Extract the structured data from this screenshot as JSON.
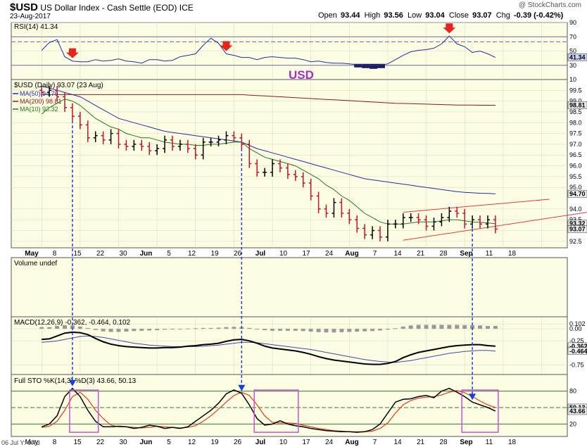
{
  "header": {
    "symbol": "$USD",
    "name": "US Dollar Index - Cash Settle (EOD)",
    "exchange": "ICE",
    "date": "23-Aug-2017",
    "watermark": "@ StockCharts.com",
    "open_label": "Open",
    "open": "93.44",
    "high_label": "High",
    "high": "93.56",
    "low_label": "Low",
    "low": "93.04",
    "close_label": "Close",
    "close": "93.07",
    "chg_label": "Chg",
    "chg": "-0.39 (-0.42%)"
  },
  "annotation_usd": "USD",
  "colors": {
    "panel_bg": "#fdfde3",
    "bear": "#c8102e",
    "bull": "#000000",
    "ma50": "#1f2ea8",
    "ma200": "#8b1a1a",
    "ma10": "#1f7a1f",
    "channel": "#e03c3c",
    "arrow_red": "#e8231c",
    "arrow_blue": "#1a3fd6",
    "box_magenta": "#d050d0",
    "macd_line": "#000000",
    "signal_line": "#3d4ab3",
    "histogram": "#999999",
    "sto_k": "#000000",
    "sto_d": "#e03c1c"
  },
  "chart_data": [
    {
      "type": "line",
      "panel": "rsi",
      "label": "RSI(14) 41.34",
      "ylim": [
        10,
        90
      ],
      "tick_labels": [
        "90",
        "70",
        "50",
        "30",
        "10"
      ],
      "level_labels": [
        "41.34"
      ],
      "series": [
        {
          "name": "RSI(14)",
          "values": [
            51,
            62,
            66,
            42,
            36,
            35,
            35,
            38,
            36,
            37,
            39,
            36,
            35,
            33,
            38,
            38,
            36,
            37,
            42,
            44,
            46,
            58,
            68,
            61,
            46,
            44,
            41,
            41,
            38,
            41,
            42,
            41,
            40,
            40,
            38,
            35,
            36,
            34,
            33,
            33,
            32,
            31,
            30,
            29,
            30,
            32,
            38,
            44,
            49,
            51,
            52,
            54,
            60,
            71,
            60,
            56,
            48,
            50,
            46,
            41
          ]
        }
      ]
    },
    {
      "type": "candlestick",
      "panel": "price",
      "label": "$USD (Daily) 93.07 (23 Aug)",
      "legend": [
        "MA(50) 94.70",
        "MA(200) 98.81",
        "MA(10) 93.32"
      ],
      "ylim": [
        92.2,
        100.0
      ],
      "tick_labels": [
        "99.5",
        "99.0",
        "98.5",
        "98.0",
        "97.5",
        "97.0",
        "96.5",
        "96.0",
        "95.5",
        "95.0",
        "94.0",
        "93.5",
        "93.0",
        "92.5"
      ],
      "level_labels": [
        "98.81",
        "94.70",
        "93.32",
        "93.07"
      ],
      "xlabels": [
        "May",
        "8",
        "15",
        "22",
        "30",
        "Jun",
        "5",
        "12",
        "19",
        "26",
        "Jul",
        "10",
        "17",
        "24",
        "Aug",
        "7",
        "14",
        "21",
        "28",
        "Sep",
        "11",
        "18"
      ],
      "close": [
        99.4,
        99.5,
        99.2,
        98.7,
        98.3,
        97.9,
        97.3,
        97.4,
        97.2,
        97.5,
        97.0,
        96.9,
        97.0,
        96.9,
        96.7,
        96.8,
        97.2,
        96.9,
        97.0,
        96.8,
        96.5,
        97.1,
        97.1,
        97.2,
        97.4,
        97.3,
        97.0,
        96.1,
        95.7,
        95.7,
        96.1,
        95.9,
        95.6,
        95.5,
        95.2,
        94.6,
        94.0,
        93.8,
        94.3,
        93.8,
        93.5,
        93.1,
        92.8,
        93.0,
        92.7,
        93.3,
        93.3,
        93.6,
        93.6,
        93.5,
        93.2,
        93.4,
        93.6,
        93.9,
        93.8,
        93.3,
        93.5,
        93.3,
        93.5,
        93.07
      ],
      "ma50": [
        99.7,
        99.6,
        99.5,
        99.4,
        99.3,
        99.2,
        99.0,
        98.8,
        98.6,
        98.4,
        98.2,
        98.1,
        98.0,
        97.9,
        97.8,
        97.7,
        97.6,
        97.55,
        97.5,
        97.45,
        97.4,
        97.35,
        97.3,
        97.25,
        97.2,
        97.15,
        97.1,
        96.95,
        96.8,
        96.7,
        96.6,
        96.5,
        96.4,
        96.3,
        96.2,
        96.1,
        96.0,
        95.9,
        95.8,
        95.7,
        95.6,
        95.5,
        95.4,
        95.35,
        95.3,
        95.25,
        95.2,
        95.15,
        95.1,
        95.05,
        95.0,
        94.95,
        94.9,
        94.85,
        94.8,
        94.77,
        94.75,
        94.73,
        94.72,
        94.7
      ],
      "ma200": [
        99.3,
        99.3,
        99.3,
        99.3,
        99.3,
        99.3,
        99.3,
        99.3,
        99.3,
        99.3,
        99.3,
        99.3,
        99.3,
        99.3,
        99.3,
        99.3,
        99.3,
        99.3,
        99.3,
        99.3,
        99.3,
        99.3,
        99.3,
        99.3,
        99.3,
        99.3,
        99.3,
        99.28,
        99.26,
        99.24,
        99.22,
        99.2,
        99.18,
        99.16,
        99.14,
        99.12,
        99.1,
        99.08,
        99.06,
        99.04,
        99.02,
        99.0,
        98.98,
        98.96,
        98.94,
        98.92,
        98.9,
        98.89,
        98.88,
        98.87,
        98.86,
        98.85,
        98.84,
        98.83,
        98.82,
        98.82,
        98.82,
        98.81,
        98.81,
        98.81
      ],
      "ma10": [
        98.4,
        98.7,
        98.9,
        99.1,
        99.0,
        98.8,
        98.5,
        98.2,
        98.0,
        97.8,
        97.7,
        97.5,
        97.4,
        97.3,
        97.3,
        97.2,
        97.1,
        97.05,
        97.0,
        97.0,
        96.95,
        96.95,
        97.0,
        97.0,
        97.05,
        97.1,
        97.1,
        96.8,
        96.6,
        96.4,
        96.3,
        96.2,
        96.1,
        96.0,
        95.8,
        95.6,
        95.4,
        95.1,
        94.9,
        94.6,
        94.4,
        94.1,
        93.8,
        93.6,
        93.4,
        93.3,
        93.3,
        93.3,
        93.35,
        93.4,
        93.4,
        93.4,
        93.45,
        93.5,
        93.5,
        93.45,
        93.4,
        93.38,
        93.35,
        93.32
      ],
      "channel_upper": [
        [
          47,
          93.85
        ],
        [
          66,
          94.45
        ]
      ],
      "channel_lower": [
        [
          47,
          92.55
        ],
        [
          71,
          93.85
        ]
      ]
    },
    {
      "type": "bar",
      "panel": "volume",
      "label": "Volume undef",
      "values": []
    },
    {
      "type": "line",
      "panel": "macd",
      "label": "MACD(12,26,9) -0.362, -0.464, 0.102",
      "ylim": [
        -0.95,
        0.25
      ],
      "tick_labels": [
        "0.102",
        "0.00",
        "-0.25",
        "-0.75"
      ],
      "level_labels": [
        "-0.362",
        "-0.464"
      ],
      "series": [
        {
          "name": "MACD(12,26,9)",
          "values": [
            -0.22,
            -0.21,
            -0.15,
            -0.09,
            -0.07,
            -0.08,
            -0.12,
            -0.2,
            -0.27,
            -0.32,
            -0.35,
            -0.37,
            -0.38,
            -0.39,
            -0.4,
            -0.4,
            -0.39,
            -0.39,
            -0.38,
            -0.36,
            -0.35,
            -0.33,
            -0.32,
            -0.3,
            -0.26,
            -0.23,
            -0.22,
            -0.25,
            -0.3,
            -0.36,
            -0.4,
            -0.42,
            -0.44,
            -0.46,
            -0.49,
            -0.53,
            -0.58,
            -0.62,
            -0.65,
            -0.67,
            -0.69,
            -0.71,
            -0.73,
            -0.74,
            -0.74,
            -0.72,
            -0.68,
            -0.6,
            -0.54,
            -0.49,
            -0.46,
            -0.43,
            -0.4,
            -0.37,
            -0.35,
            -0.34,
            -0.33,
            -0.33,
            -0.35,
            -0.362
          ]
        },
        {
          "name": "signal",
          "values": [
            -0.28,
            -0.27,
            -0.25,
            -0.22,
            -0.19,
            -0.16,
            -0.15,
            -0.16,
            -0.18,
            -0.21,
            -0.24,
            -0.27,
            -0.3,
            -0.32,
            -0.34,
            -0.35,
            -0.36,
            -0.37,
            -0.37,
            -0.37,
            -0.37,
            -0.36,
            -0.35,
            -0.34,
            -0.32,
            -0.3,
            -0.28,
            -0.28,
            -0.29,
            -0.31,
            -0.33,
            -0.35,
            -0.37,
            -0.39,
            -0.41,
            -0.43,
            -0.46,
            -0.49,
            -0.52,
            -0.55,
            -0.58,
            -0.61,
            -0.64,
            -0.66,
            -0.68,
            -0.69,
            -0.7,
            -0.68,
            -0.66,
            -0.63,
            -0.6,
            -0.57,
            -0.54,
            -0.51,
            -0.49,
            -0.47,
            -0.46,
            -0.45,
            -0.45,
            -0.464
          ]
        },
        {
          "name": "histogram",
          "values": [
            0.06,
            0.06,
            0.1,
            0.13,
            0.12,
            0.08,
            0.03,
            -0.04,
            -0.09,
            -0.11,
            -0.11,
            -0.1,
            -0.08,
            -0.07,
            -0.06,
            -0.05,
            -0.03,
            -0.02,
            -0.01,
            0.01,
            0.02,
            0.03,
            0.03,
            0.04,
            0.06,
            0.07,
            0.06,
            0.03,
            -0.01,
            -0.05,
            -0.07,
            -0.07,
            -0.07,
            -0.07,
            -0.08,
            -0.1,
            -0.12,
            -0.13,
            -0.13,
            -0.12,
            -0.11,
            -0.1,
            -0.09,
            -0.08,
            -0.06,
            -0.03,
            0.02,
            0.08,
            0.12,
            0.14,
            0.14,
            0.14,
            0.14,
            0.14,
            0.14,
            0.13,
            0.13,
            0.12,
            0.1,
            0.102
          ]
        }
      ]
    },
    {
      "type": "line",
      "panel": "stochastic",
      "label": "Full STO %K(14,3) %D(3) 43.66, 50.13",
      "ylim": [
        0,
        100
      ],
      "tick_labels": [
        "80",
        "20"
      ],
      "level_labels": [
        "50.13",
        "43.66"
      ],
      "series": [
        {
          "name": "%K",
          "values": [
            15,
            20,
            35,
            70,
            85,
            70,
            45,
            25,
            15,
            15,
            16,
            15,
            12,
            14,
            18,
            16,
            12,
            14,
            12,
            15,
            25,
            35,
            45,
            58,
            75,
            82,
            76,
            55,
            30,
            18,
            20,
            26,
            20,
            17,
            15,
            12,
            10,
            8,
            7,
            6,
            6,
            5,
            6,
            10,
            20,
            40,
            60,
            65,
            66,
            70,
            72,
            68,
            80,
            85,
            78,
            70,
            60,
            55,
            50,
            43.66
          ]
        },
        {
          "name": "%D",
          "values": [
            14,
            16,
            25,
            45,
            70,
            78,
            65,
            45,
            30,
            18,
            15,
            15,
            14,
            13,
            14,
            16,
            15,
            14,
            13,
            14,
            17,
            25,
            35,
            47,
            60,
            72,
            78,
            72,
            55,
            35,
            23,
            22,
            22,
            21,
            18,
            15,
            12,
            10,
            8,
            7,
            6,
            6,
            6,
            7,
            12,
            22,
            40,
            55,
            63,
            67,
            69,
            70,
            73,
            78,
            81,
            77,
            70,
            62,
            55,
            50.13
          ]
        }
      ]
    }
  ],
  "status_text": "06 Jul Y:-9.73"
}
